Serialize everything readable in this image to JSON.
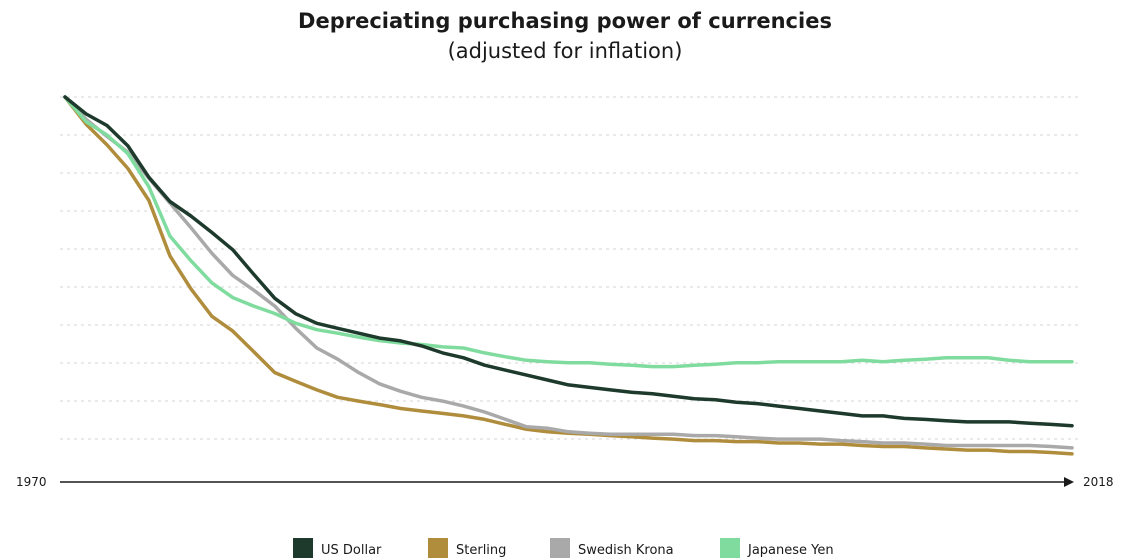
{
  "chart_data": {
    "type": "line",
    "title": "Depreciating purchasing power of currencies",
    "subtitle": "(adjusted for inflation)",
    "x_start_label": "1970",
    "x_end_label": "2018",
    "xlim": [
      1970,
      2018
    ],
    "ylim": [
      0,
      1
    ],
    "grid": "horizontal dashed",
    "legend_position": "bottom",
    "x": [
      1970,
      1971,
      1972,
      1973,
      1974,
      1975,
      1976,
      1977,
      1978,
      1979,
      1980,
      1981,
      1982,
      1983,
      1984,
      1985,
      1986,
      1987,
      1988,
      1989,
      1990,
      1991,
      1992,
      1993,
      1994,
      1995,
      1996,
      1997,
      1998,
      1999,
      2000,
      2001,
      2002,
      2003,
      2004,
      2005,
      2006,
      2007,
      2008,
      2009,
      2010,
      2011,
      2012,
      2013,
      2014,
      2015,
      2016,
      2017,
      2018
    ],
    "series": [
      {
        "name": "US Dollar",
        "color": "#1d3a2c",
        "values": [
          1.0,
          0.952,
          0.919,
          0.861,
          0.772,
          0.703,
          0.662,
          0.615,
          0.566,
          0.496,
          0.428,
          0.384,
          0.357,
          0.343,
          0.329,
          0.315,
          0.307,
          0.293,
          0.273,
          0.259,
          0.238,
          0.224,
          0.21,
          0.196,
          0.182,
          0.175,
          0.168,
          0.161,
          0.157,
          0.15,
          0.143,
          0.14,
          0.133,
          0.129,
          0.122,
          0.115,
          0.108,
          0.101,
          0.094,
          0.094,
          0.087,
          0.084,
          0.08,
          0.077,
          0.077,
          0.077,
          0.073,
          0.07,
          0.066
        ]
      },
      {
        "name": "Sterling",
        "color": "#b08d3c",
        "values": [
          1.0,
          0.923,
          0.864,
          0.797,
          0.706,
          0.549,
          0.455,
          0.377,
          0.335,
          0.276,
          0.217,
          0.192,
          0.168,
          0.147,
          0.136,
          0.126,
          0.115,
          0.108,
          0.101,
          0.094,
          0.084,
          0.07,
          0.056,
          0.049,
          0.045,
          0.042,
          0.038,
          0.035,
          0.031,
          0.028,
          0.024,
          0.024,
          0.021,
          0.021,
          0.017,
          0.017,
          0.014,
          0.014,
          0.01,
          0.007,
          0.007,
          0.003,
          0.0,
          -0.003,
          -0.003,
          -0.007,
          -0.007,
          -0.01,
          -0.014
        ]
      },
      {
        "name": "Swedish Krona",
        "color": "#a9a9a9",
        "values": [
          1.0,
          0.937,
          0.888,
          0.843,
          0.769,
          0.699,
          0.629,
          0.556,
          0.493,
          0.451,
          0.406,
          0.343,
          0.287,
          0.255,
          0.217,
          0.185,
          0.164,
          0.147,
          0.136,
          0.122,
          0.105,
          0.084,
          0.063,
          0.059,
          0.049,
          0.045,
          0.042,
          0.042,
          0.042,
          0.042,
          0.038,
          0.038,
          0.035,
          0.031,
          0.028,
          0.028,
          0.028,
          0.024,
          0.021,
          0.017,
          0.017,
          0.014,
          0.01,
          0.01,
          0.01,
          0.01,
          0.01,
          0.007,
          0.003
        ]
      },
      {
        "name": "Japanese Yen",
        "color": "#7fdc9e",
        "values": [
          1.0,
          0.93,
          0.892,
          0.839,
          0.745,
          0.605,
          0.535,
          0.472,
          0.43,
          0.406,
          0.385,
          0.357,
          0.339,
          0.329,
          0.318,
          0.308,
          0.301,
          0.297,
          0.29,
          0.287,
          0.273,
          0.262,
          0.252,
          0.248,
          0.245,
          0.245,
          0.241,
          0.238,
          0.234,
          0.234,
          0.238,
          0.241,
          0.245,
          0.245,
          0.248,
          0.248,
          0.248,
          0.248,
          0.252,
          0.248,
          0.252,
          0.255,
          0.259,
          0.259,
          0.259,
          0.252,
          0.248,
          0.248,
          0.248
        ]
      }
    ]
  }
}
